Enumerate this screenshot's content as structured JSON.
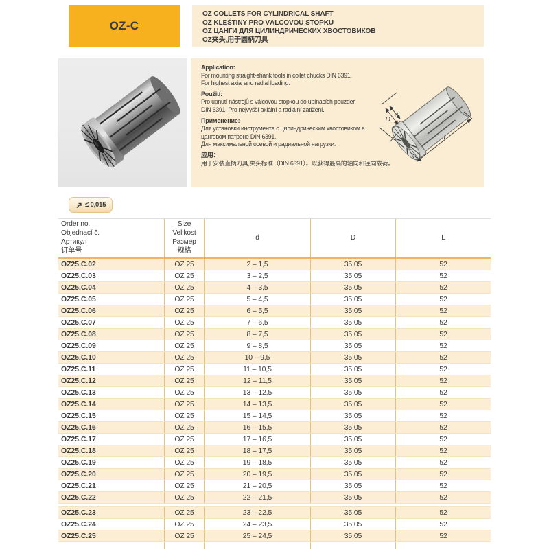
{
  "header": {
    "code": "OZ-C",
    "titles": [
      "OZ COLLETS FOR CYLINDRICAL SHAFT",
      "OZ KLEŠTINY PRO VÁLCOVOU STOPKU",
      "OZ ЦАНГИ ДЛЯ ЦИЛИНДРИЧЕСКИХ ХВОСТОВИКОВ",
      "OZ夹头,用于圆柄刀具"
    ]
  },
  "info": {
    "sections": [
      {
        "heading": "Application:",
        "lines": [
          "For mounting straight-shank tools in collet chucks DIN 6391.",
          "For highest axial and radial loading."
        ]
      },
      {
        "heading": "Použití:",
        "lines": [
          "Pro upnutí nástrojů s válcovou stopkou do upínacích pouzder",
          "DIN 6391. Pro nejvyšší axiální a radiální zatížení."
        ]
      },
      {
        "heading": "Применение:",
        "lines": [
          "Для установки инструмента с цилиндрическим хвостовиком в",
          "цанговом патроне DIN 6391.",
          "Для максимальной осевой и радиальной нагрузки."
        ]
      },
      {
        "heading": "应用：",
        "lines": [
          "用于安装直柄刀具,夹头标准（DIN 6391）。以获得最高的轴向和径向载荷。"
        ]
      }
    ],
    "diagram_labels": {
      "D": "D",
      "d": "d",
      "L": "L"
    }
  },
  "badge": {
    "icon": "runout-arrow",
    "value": "≤ 0,015"
  },
  "table": {
    "columns": [
      {
        "label_lines": [
          "Order no.",
          "Objednací č.",
          "Артикул",
          "订单号"
        ]
      },
      {
        "label_lines": [
          "Size",
          "Velikost",
          "Размер",
          "规格"
        ]
      },
      {
        "label_lines": [
          "d"
        ]
      },
      {
        "label_lines": [
          "D"
        ]
      },
      {
        "label_lines": [
          "L"
        ]
      }
    ],
    "divider_after": "OZ25.C.22",
    "rows": [
      {
        "order": "OZ25.C.02",
        "size": "OZ 25",
        "d": "2 – 1,5",
        "D": "35,05",
        "L": "52"
      },
      {
        "order": "OZ25.C.03",
        "size": "OZ 25",
        "d": "3 – 2,5",
        "D": "35,05",
        "L": "52"
      },
      {
        "order": "OZ25.C.04",
        "size": "OZ 25",
        "d": "4 – 3,5",
        "D": "35,05",
        "L": "52"
      },
      {
        "order": "OZ25.C.05",
        "size": "OZ 25",
        "d": "5 – 4,5",
        "D": "35,05",
        "L": "52"
      },
      {
        "order": "OZ25.C.06",
        "size": "OZ 25",
        "d": "6 – 5,5",
        "D": "35,05",
        "L": "52"
      },
      {
        "order": "OZ25.C.07",
        "size": "OZ 25",
        "d": "7 – 6,5",
        "D": "35,05",
        "L": "52"
      },
      {
        "order": "OZ25.C.08",
        "size": "OZ 25",
        "d": "8 – 7,5",
        "D": "35,05",
        "L": "52"
      },
      {
        "order": "OZ25.C.09",
        "size": "OZ 25",
        "d": "9 – 8,5",
        "D": "35,05",
        "L": "52"
      },
      {
        "order": "OZ25.C.10",
        "size": "OZ 25",
        "d": "10 – 9,5",
        "D": "35,05",
        "L": "52"
      },
      {
        "order": "OZ25.C.11",
        "size": "OZ 25",
        "d": "11 – 10,5",
        "D": "35,05",
        "L": "52"
      },
      {
        "order": "OZ25.C.12",
        "size": "OZ 25",
        "d": "12 – 11,5",
        "D": "35,05",
        "L": "52"
      },
      {
        "order": "OZ25.C.13",
        "size": "OZ 25",
        "d": "13 – 12,5",
        "D": "35,05",
        "L": "52"
      },
      {
        "order": "OZ25.C.14",
        "size": "OZ 25",
        "d": "14 – 13,5",
        "D": "35,05",
        "L": "52"
      },
      {
        "order": "OZ25.C.15",
        "size": "OZ 25",
        "d": "15 – 14,5",
        "D": "35,05",
        "L": "52"
      },
      {
        "order": "OZ25.C.16",
        "size": "OZ 25",
        "d": "16 – 15,5",
        "D": "35,05",
        "L": "52"
      },
      {
        "order": "OZ25.C.17",
        "size": "OZ 25",
        "d": "17 – 16,5",
        "D": "35,05",
        "L": "52"
      },
      {
        "order": "OZ25.C.18",
        "size": "OZ 25",
        "d": "18 – 17,5",
        "D": "35,05",
        "L": "52"
      },
      {
        "order": "OZ25.C.19",
        "size": "OZ 25",
        "d": "19 – 18,5",
        "D": "35,05",
        "L": "52"
      },
      {
        "order": "OZ25.C.20",
        "size": "OZ 25",
        "d": "20 – 19,5",
        "D": "35,05",
        "L": "52"
      },
      {
        "order": "OZ25.C.21",
        "size": "OZ 25",
        "d": "21 – 20,5",
        "D": "35,05",
        "L": "52"
      },
      {
        "order": "OZ25.C.22",
        "size": "OZ 25",
        "d": "22 – 21,5",
        "D": "35,05",
        "L": "52"
      },
      {
        "order": "OZ25.C.23",
        "size": "OZ 25",
        "d": "23 – 22,5",
        "D": "35,05",
        "L": "52"
      },
      {
        "order": "OZ25.C.24",
        "size": "OZ 25",
        "d": "24 – 23,5",
        "D": "35,05",
        "L": "52"
      },
      {
        "order": "OZ25.C.25",
        "size": "OZ 25",
        "d": "25 – 24,5",
        "D": "35,05",
        "L": "52"
      }
    ]
  },
  "colors": {
    "accent_yellow": "#F8B11E",
    "panel_beige": "#FBEDD3",
    "row_beige": "#FBEED5",
    "grid_orange": "#ECC078",
    "header_underline": "#EFB564",
    "text": "#3C3C3C"
  }
}
